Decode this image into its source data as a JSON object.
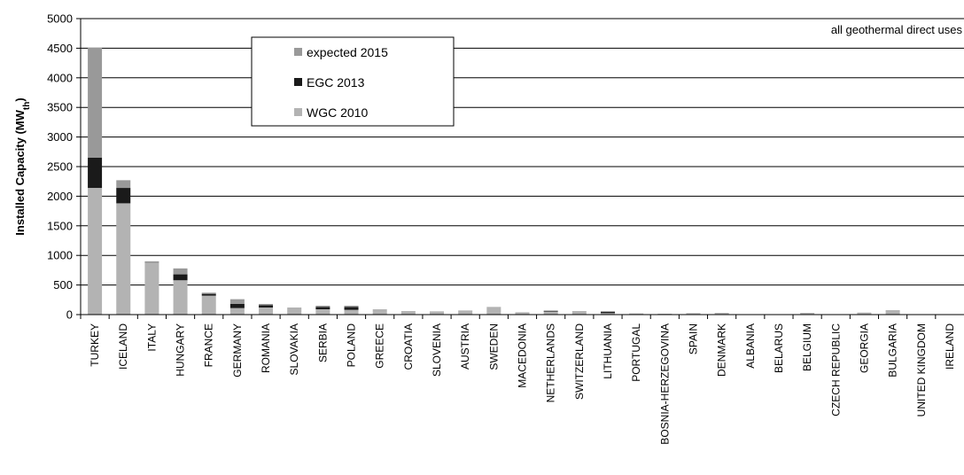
{
  "chart_data": {
    "type": "bar",
    "stacked": true,
    "title": "",
    "annotation": "all geothermal direct uses",
    "ylabel": "Installed Capacity (MW",
    "ylabel_sub": "th",
    "ylabel_close": ")",
    "xlabel": "",
    "ylim": [
      0,
      5000
    ],
    "yticks": [
      0,
      500,
      1000,
      1500,
      2000,
      2500,
      3000,
      3500,
      4000,
      4500,
      5000
    ],
    "grid": true,
    "legend_position": "top-left",
    "categories": [
      "TURKEY",
      "ICELAND",
      "ITALY",
      "HUNGARY",
      "FRANCE",
      "GERMANY",
      "ROMANIA",
      "SLOVAKIA",
      "SERBIA",
      "POLAND",
      "GREECE",
      "CROATIA",
      "SLOVENIA",
      "AUSTRIA",
      "SWEDEN",
      "MACEDONIA",
      "NETHERLANDS",
      "SWITZERLAND",
      "LITHUANIA",
      "PORTUGAL",
      "BOSNIA-HERZEGOVINA",
      "SPAIN",
      "DENMARK",
      "ALBANIA",
      "BELARUS",
      "BELGIUM",
      "CZECH REPUBLIC",
      "GEORGIA",
      "BULGARIA",
      "UNITED KINGDOM",
      "IRELAND"
    ],
    "series": [
      {
        "name": "WGC 2010",
        "color": "#b3b3b3",
        "values": [
          2140,
          1880,
          870,
          580,
          320,
          110,
          120,
          120,
          90,
          80,
          90,
          60,
          55,
          70,
          130,
          40,
          45,
          60,
          25,
          20,
          15,
          25,
          30,
          5,
          5,
          30,
          5,
          35,
          75,
          5,
          3
        ]
      },
      {
        "name": "EGC 2013",
        "color": "#1a1a1a",
        "values": [
          510,
          260,
          0,
          100,
          30,
          70,
          40,
          0,
          40,
          50,
          0,
          0,
          0,
          0,
          0,
          0,
          10,
          0,
          25,
          0,
          0,
          0,
          0,
          0,
          0,
          0,
          0,
          0,
          0,
          0,
          0
        ]
      },
      {
        "name": "expected 2015",
        "color": "#999999",
        "values": [
          1860,
          130,
          30,
          100,
          20,
          80,
          20,
          0,
          20,
          20,
          0,
          0,
          0,
          0,
          0,
          0,
          15,
          0,
          0,
          0,
          0,
          0,
          0,
          0,
          0,
          0,
          0,
          0,
          0,
          0,
          0
        ]
      }
    ],
    "legend_order": [
      "expected 2015",
      "EGC 2013",
      "WGC 2010"
    ]
  }
}
